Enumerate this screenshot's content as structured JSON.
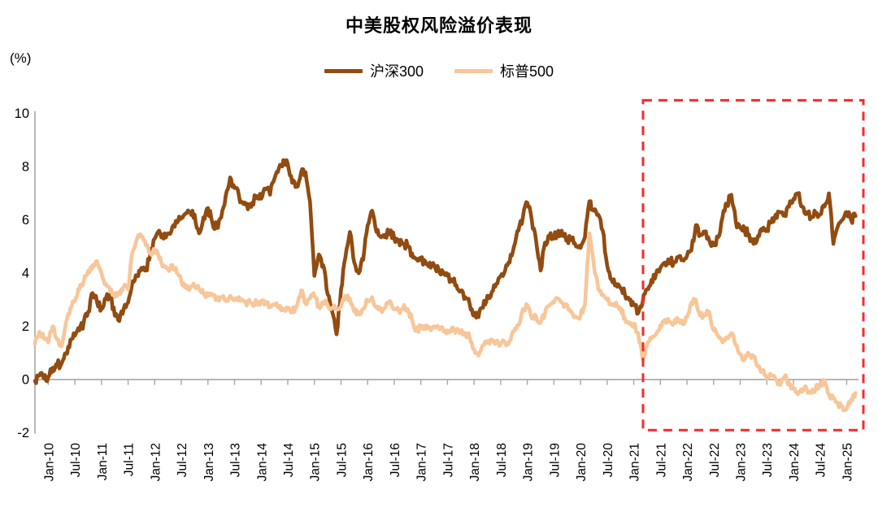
{
  "title": "中美股权风险溢价表现",
  "y_unit_label": "(%)",
  "legend": [
    {
      "label": "沪深300",
      "color": "#924B10"
    },
    {
      "label": "标普500",
      "color": "#F7C699"
    }
  ],
  "colors": {
    "csi300_line": "#924B10",
    "sp500_line": "#F7C699",
    "highlight_box": "#F92A2A",
    "axis": "#A6A6A6",
    "text": "#000000"
  },
  "chart_data": {
    "type": "line",
    "title": "中美股权风险溢价表现",
    "ylabel": "(%)",
    "ylim": [
      -2,
      10
    ],
    "y_ticks": [
      10,
      8,
      6,
      4,
      2,
      0,
      -2
    ],
    "grid": false,
    "legend_position": "top-center",
    "x_start_month": "2009-10",
    "x_end_month": "2025-03",
    "x_tick_labels": [
      "Jan-10",
      "Jul-10",
      "Jan-11",
      "Jul-11",
      "Jan-12",
      "Jul-12",
      "Jan-13",
      "Jul-13",
      "Jan-14",
      "Jul-14",
      "Jan-15",
      "Jul-15",
      "Jan-16",
      "Jul-16",
      "Jan-17",
      "Jul-17",
      "Jan-18",
      "Jul-18",
      "Jan-19",
      "Jul-19",
      "Jan-20",
      "Jul-20",
      "Jan-21",
      "Jul-21",
      "Jan-22",
      "Jul-22",
      "Jan-23",
      "Jul-23",
      "Jan-24",
      "Jul-24",
      "Jan-25"
    ],
    "series": [
      {
        "name": "沪深300",
        "color": "#924B10",
        "monthly_values": [
          -0.05,
          0.15,
          0.05,
          0.1,
          0.45,
          0.55,
          0.6,
          1.0,
          1.5,
          1.65,
          1.85,
          2.15,
          2.55,
          3.25,
          2.9,
          2.65,
          3.05,
          3.2,
          2.4,
          2.2,
          2.65,
          2.9,
          3.7,
          3.9,
          4.2,
          4.1,
          4.7,
          5.3,
          5.6,
          5.3,
          5.5,
          5.75,
          5.9,
          6.1,
          6.25,
          6.3,
          6.2,
          5.5,
          6.1,
          6.45,
          5.9,
          5.7,
          6.1,
          6.9,
          7.6,
          7.2,
          6.9,
          6.6,
          6.4,
          6.65,
          6.9,
          6.8,
          7.15,
          6.95,
          7.55,
          7.95,
          8.25,
          8.1,
          7.4,
          7.25,
          7.8,
          7.8,
          6.7,
          3.9,
          4.7,
          4.3,
          3.2,
          2.55,
          1.7,
          3.4,
          4.6,
          5.55,
          4.4,
          4.0,
          4.5,
          5.8,
          6.35,
          5.55,
          5.35,
          5.45,
          5.55,
          5.3,
          5.25,
          5.1,
          5.05,
          4.75,
          4.55,
          4.5,
          4.45,
          4.4,
          4.3,
          4.15,
          4.05,
          3.9,
          3.75,
          3.55,
          3.35,
          3.1,
          2.85,
          2.4,
          2.35,
          2.7,
          3.15,
          3.3,
          3.6,
          3.9,
          4.1,
          4.4,
          5.0,
          5.6,
          6.1,
          6.65,
          6.0,
          5.2,
          4.1,
          5.15,
          5.4,
          5.3,
          5.6,
          5.4,
          5.3,
          5.25,
          5.0,
          4.95,
          5.35,
          6.7,
          6.35,
          6.2,
          5.6,
          4.3,
          3.75,
          3.6,
          3.45,
          3.2,
          3.0,
          2.8,
          2.5,
          2.9,
          3.4,
          3.75,
          3.95,
          4.2,
          4.4,
          4.5,
          4.4,
          4.6,
          4.5,
          4.65,
          4.85,
          5.8,
          5.45,
          5.55,
          5.25,
          5.05,
          5.35,
          6.1,
          6.6,
          6.95,
          5.95,
          5.7,
          5.6,
          5.45,
          5.1,
          5.4,
          5.6,
          5.65,
          5.9,
          6.2,
          6.3,
          6.2,
          6.5,
          6.8,
          7.0,
          6.5,
          6.3,
          6.1,
          6.25,
          6.2,
          6.5,
          7.0,
          5.1,
          5.75,
          6.0,
          6.3,
          6.0,
          6.15
        ]
      },
      {
        "name": "标普500",
        "color": "#F7C699",
        "monthly_values": [
          1.35,
          1.8,
          1.55,
          1.4,
          2.0,
          1.5,
          1.25,
          2.15,
          2.7,
          2.95,
          3.4,
          3.7,
          4.1,
          4.3,
          4.45,
          4.0,
          3.6,
          3.3,
          3.1,
          3.3,
          3.5,
          3.4,
          4.8,
          5.3,
          5.4,
          5.05,
          4.75,
          4.9,
          4.55,
          4.3,
          4.15,
          4.3,
          4.0,
          3.7,
          3.55,
          3.45,
          3.5,
          3.4,
          3.25,
          3.15,
          3.2,
          3.05,
          3.1,
          2.95,
          3.15,
          3.0,
          3.1,
          2.95,
          2.9,
          2.85,
          2.9,
          2.95,
          2.85,
          2.75,
          2.8,
          2.7,
          2.6,
          2.7,
          2.55,
          2.75,
          3.35,
          2.85,
          3.05,
          3.15,
          2.75,
          2.9,
          2.8,
          2.7,
          2.65,
          2.75,
          3.15,
          3.05,
          2.55,
          2.5,
          2.65,
          3.0,
          3.1,
          2.7,
          2.65,
          2.7,
          2.95,
          2.65,
          2.6,
          2.7,
          2.65,
          2.25,
          1.85,
          1.95,
          1.9,
          1.95,
          2.0,
          1.95,
          1.9,
          1.85,
          1.95,
          1.85,
          1.8,
          1.75,
          1.6,
          1.15,
          0.9,
          1.3,
          1.45,
          1.5,
          1.45,
          1.35,
          1.4,
          1.45,
          1.8,
          2.05,
          2.65,
          2.8,
          2.3,
          2.35,
          2.15,
          2.5,
          2.8,
          2.9,
          3.05,
          2.85,
          2.8,
          2.55,
          2.35,
          2.4,
          2.8,
          5.5,
          4.3,
          3.4,
          3.2,
          3.0,
          2.8,
          2.9,
          2.7,
          2.3,
          2.15,
          2.1,
          1.75,
          0.75,
          1.3,
          1.55,
          1.7,
          2.05,
          2.25,
          2.2,
          2.1,
          2.25,
          2.1,
          2.35,
          2.9,
          3.0,
          2.4,
          2.45,
          2.55,
          1.85,
          1.65,
          1.4,
          1.55,
          1.75,
          1.3,
          0.95,
          0.75,
          0.95,
          0.85,
          0.5,
          0.35,
          0.05,
          0.15,
          0.0,
          -0.2,
          0.1,
          -0.1,
          -0.35,
          -0.55,
          -0.45,
          -0.35,
          -0.5,
          -0.35,
          -0.15,
          -0.05,
          -0.55,
          -0.7,
          -0.9,
          -1.0,
          -1.1,
          -0.75,
          -0.5
        ]
      }
    ],
    "annotation_highlight_box": {
      "style": "dashed-rectangle",
      "color": "#F92A2A",
      "x_from_month": "2021-03",
      "x_to_month": "2025-03",
      "y_from": -1.9,
      "y_to": 10.5
    }
  }
}
